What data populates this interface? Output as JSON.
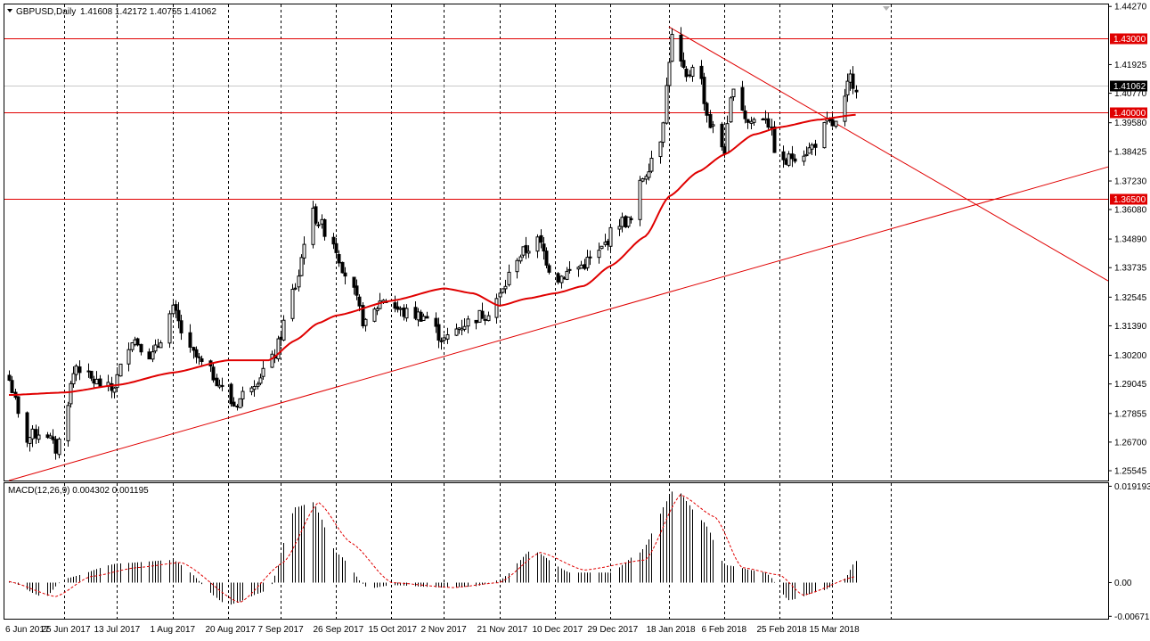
{
  "header": {
    "symbol": "GBPUSD,Daily",
    "ohlc": "1.41608 1.42172 1.40755 1.41062"
  },
  "macd_header": "MACD(12,26,9) 0.004302 0.001195",
  "colors": {
    "candle": "#000000",
    "ma": "#e00000",
    "lines": "#e00000",
    "grid": "#000000",
    "tag_bg": "#e00000",
    "current_bg": "#000000"
  },
  "chart_data": {
    "type": "candlestick",
    "price_axis": {
      "range": [
        1.2515,
        1.4435
      ],
      "ticks": [
        "1.44270",
        "1.41925",
        "1.40770",
        "1.39580",
        "1.38425",
        "1.37230",
        "1.36080",
        "1.34890",
        "1.33735",
        "1.32545",
        "1.31390",
        "1.30200",
        "1.29045",
        "1.27855",
        "1.26700",
        "1.25545"
      ]
    },
    "macd_axis": {
      "range": [
        -0.0072,
        0.0198
      ],
      "ticks": [
        "0.019193",
        "0.00",
        "-0.006718"
      ]
    },
    "date_labels": [
      "6 Jun 2017",
      "25 Jun 2017",
      "13 Jul 2017",
      "1 Aug 2017",
      "20 Aug 2017",
      "7 Sep 2017",
      "26 Sep 2017",
      "15 Oct 2017",
      "2 Nov 2017",
      "21 Nov 2017",
      "10 Dec 2017",
      "29 Dec 2017",
      "18 Jan 2018",
      "6 Feb 2018",
      "25 Feb 2018",
      "15 Mar 2018"
    ],
    "levels": [
      {
        "price": 1.43,
        "label": "1.43000"
      },
      {
        "price": 1.4,
        "label": "1.40000"
      },
      {
        "price": 1.365,
        "label": "1.36500"
      }
    ],
    "current_price": {
      "price": 1.41062,
      "label": "1.41062"
    },
    "trendlines": [
      {
        "from": [
          "6 Jun 2017",
          1.2515
        ],
        "to": [
          "end",
          1.378
        ]
      },
      {
        "from": [
          "18 Jan 2018",
          1.4345
        ],
        "to": [
          "end",
          1.332
        ]
      }
    ],
    "anchors": [
      {
        "date": "6 Jun 2017",
        "price": 1.292
      },
      {
        "date": "11 Jun 2017",
        "price": 1.268
      },
      {
        "date": "18 Jun 2017",
        "price": 1.272
      },
      {
        "date": "22 Jun 2017",
        "price": 1.264
      },
      {
        "date": "29 Jun 2017",
        "price": 1.298
      },
      {
        "date": "4 Jul 2017",
        "price": 1.292
      },
      {
        "date": "11 Jul 2017",
        "price": 1.288
      },
      {
        "date": "18 Jul 2017",
        "price": 1.309
      },
      {
        "date": "25 Jul 2017",
        "price": 1.302
      },
      {
        "date": "1 Aug 2017",
        "price": 1.32
      },
      {
        "date": "7 Aug 2017",
        "price": 1.303
      },
      {
        "date": "14 Aug 2017",
        "price": 1.295
      },
      {
        "date": "22 Aug 2017",
        "price": 1.282
      },
      {
        "date": "29 Aug 2017",
        "price": 1.292
      },
      {
        "date": "4 Sep 2017",
        "price": 1.3
      },
      {
        "date": "12 Sep 2017",
        "price": 1.33
      },
      {
        "date": "17 Sep 2017",
        "price": 1.36
      },
      {
        "date": "24 Sep 2017",
        "price": 1.35
      },
      {
        "date": "30 Sep 2017",
        "price": 1.333
      },
      {
        "date": "6 Oct 2017",
        "price": 1.314
      },
      {
        "date": "12 Oct 2017",
        "price": 1.325
      },
      {
        "date": "19 Oct 2017",
        "price": 1.319
      },
      {
        "date": "26 Oct 2017",
        "price": 1.318
      },
      {
        "date": "2 Nov 2017",
        "price": 1.308
      },
      {
        "date": "9 Nov 2017",
        "price": 1.315
      },
      {
        "date": "16 Nov 2017",
        "price": 1.319
      },
      {
        "date": "21 Nov 2017",
        "price": 1.326
      },
      {
        "date": "27 Nov 2017",
        "price": 1.342
      },
      {
        "date": "4 Dec 2017",
        "price": 1.348
      },
      {
        "date": "10 Dec 2017",
        "price": 1.333
      },
      {
        "date": "17 Dec 2017",
        "price": 1.337
      },
      {
        "date": "24 Dec 2017",
        "price": 1.342
      },
      {
        "date": "1 Jan 2018",
        "price": 1.356
      },
      {
        "date": "5 Jan 2018",
        "price": 1.356
      },
      {
        "date": "9 Jan 2018",
        "price": 1.374
      },
      {
        "date": "15 Jan 2018",
        "price": 1.39
      },
      {
        "date": "19 Jan 2018",
        "price": 1.43
      },
      {
        "date": "24 Jan 2018",
        "price": 1.413
      },
      {
        "date": "27 Jan 2018",
        "price": 1.423
      },
      {
        "date": "1 Feb 2018",
        "price": 1.395
      },
      {
        "date": "6 Feb 2018",
        "price": 1.385
      },
      {
        "date": "9 Feb 2018",
        "price": 1.412
      },
      {
        "date": "14 Feb 2018",
        "price": 1.396
      },
      {
        "date": "20 Feb 2018",
        "price": 1.399
      },
      {
        "date": "25 Feb 2018",
        "price": 1.378
      },
      {
        "date": "2 Mar 2018",
        "price": 1.383
      },
      {
        "date": "7 Mar 2018",
        "price": 1.385
      },
      {
        "date": "13 Mar 2018",
        "price": 1.395
      },
      {
        "date": "17 Mar 2018",
        "price": 1.395
      },
      {
        "date": "21 Mar 2018",
        "price": 1.414
      },
      {
        "date": "23 Mar 2018",
        "price": 1.4106
      }
    ],
    "ma_anchors": [
      {
        "date": "6 Jun 2017",
        "price": 1.286
      },
      {
        "date": "25 Jun 2017",
        "price": 1.287
      },
      {
        "date": "13 Jul 2017",
        "price": 1.29
      },
      {
        "date": "1 Aug 2017",
        "price": 1.295
      },
      {
        "date": "20 Aug 2017",
        "price": 1.3
      },
      {
        "date": "3 Sep 2017",
        "price": 1.3
      },
      {
        "date": "12 Sep 2017",
        "price": 1.308
      },
      {
        "date": "20 Sep 2017",
        "price": 1.315
      },
      {
        "date": "26 Sep 2017",
        "price": 1.318
      },
      {
        "date": "15 Oct 2017",
        "price": 1.324
      },
      {
        "date": "2 Nov 2017",
        "price": 1.329
      },
      {
        "date": "12 Nov 2017",
        "price": 1.327
      },
      {
        "date": "21 Nov 2017",
        "price": 1.322
      },
      {
        "date": "1 Dec 2017",
        "price": 1.325
      },
      {
        "date": "10 Dec 2017",
        "price": 1.327
      },
      {
        "date": "20 Dec 2017",
        "price": 1.33
      },
      {
        "date": "29 Dec 2017",
        "price": 1.338
      },
      {
        "date": "10 Jan 2018",
        "price": 1.35
      },
      {
        "date": "18 Jan 2018",
        "price": 1.366
      },
      {
        "date": "28 Jan 2018",
        "price": 1.376
      },
      {
        "date": "6 Feb 2018",
        "price": 1.383
      },
      {
        "date": "16 Feb 2018",
        "price": 1.391
      },
      {
        "date": "25 Feb 2018",
        "price": 1.394
      },
      {
        "date": "10 Mar 2018",
        "price": 1.397
      },
      {
        "date": "23 Mar 2018",
        "price": 1.399
      }
    ],
    "macd_anchors": [
      {
        "date": "6 Jun 2017",
        "value": 0.0002
      },
      {
        "date": "18 Jun 2017",
        "value": -0.003
      },
      {
        "date": "25 Jun 2017",
        "value": 0.0008
      },
      {
        "date": "13 Jul 2017",
        "value": 0.0038
      },
      {
        "date": "1 Aug 2017",
        "value": 0.0045
      },
      {
        "date": "20 Aug 2017",
        "value": -0.0045
      },
      {
        "date": "3 Sep 2017",
        "value": -0.0015
      },
      {
        "date": "12 Sep 2017",
        "value": 0.015
      },
      {
        "date": "18 Sep 2017",
        "value": 0.016
      },
      {
        "date": "26 Sep 2017",
        "value": 0.006
      },
      {
        "date": "7 Oct 2017",
        "value": -0.0012
      },
      {
        "date": "15 Oct 2017",
        "value": -0.0005
      },
      {
        "date": "2 Nov 2017",
        "value": -0.001
      },
      {
        "date": "12 Nov 2017",
        "value": -0.0008
      },
      {
        "date": "21 Nov 2017",
        "value": 0.0005
      },
      {
        "date": "2 Dec 2017",
        "value": 0.0065
      },
      {
        "date": "15 Dec 2017",
        "value": 0.002
      },
      {
        "date": "29 Dec 2017",
        "value": 0.002
      },
      {
        "date": "8 Jan 2018",
        "value": 0.006
      },
      {
        "date": "20 Jan 2018",
        "value": 0.0188
      },
      {
        "date": "30 Jan 2018",
        "value": 0.012
      },
      {
        "date": "6 Feb 2018",
        "value": 0.0035
      },
      {
        "date": "20 Feb 2018",
        "value": 0.002
      },
      {
        "date": "28 Feb 2018",
        "value": -0.0035
      },
      {
        "date": "12 Mar 2018",
        "value": -0.0015
      },
      {
        "date": "19 Mar 2018",
        "value": 0.0008
      },
      {
        "date": "23 Mar 2018",
        "value": 0.0043
      }
    ],
    "macd_signal_anchors": [
      {
        "date": "6 Jun 2017",
        "value": 0.0002
      },
      {
        "date": "22 Jun 2017",
        "value": -0.0028
      },
      {
        "date": "4 Jul 2017",
        "value": 0.0012
      },
      {
        "date": "20 Jul 2017",
        "value": 0.003
      },
      {
        "date": "4 Aug 2017",
        "value": 0.004
      },
      {
        "date": "24 Aug 2017",
        "value": -0.004
      },
      {
        "date": "8 Sep 2017",
        "value": 0.004
      },
      {
        "date": "20 Sep 2017",
        "value": 0.016
      },
      {
        "date": "1 Oct 2017",
        "value": 0.008
      },
      {
        "date": "15 Oct 2017",
        "value": 0.0
      },
      {
        "date": "5 Nov 2017",
        "value": -0.001
      },
      {
        "date": "21 Nov 2017",
        "value": 0.0
      },
      {
        "date": "5 Dec 2017",
        "value": 0.006
      },
      {
        "date": "20 Dec 2017",
        "value": 0.0025
      },
      {
        "date": "10 Jan 2018",
        "value": 0.0045
      },
      {
        "date": "22 Jan 2018",
        "value": 0.0175
      },
      {
        "date": "3 Feb 2018",
        "value": 0.013
      },
      {
        "date": "12 Feb 2018",
        "value": 0.003
      },
      {
        "date": "25 Feb 2018",
        "value": 0.0015
      },
      {
        "date": "5 Mar 2018",
        "value": -0.0025
      },
      {
        "date": "23 Mar 2018",
        "value": 0.0012
      }
    ]
  }
}
